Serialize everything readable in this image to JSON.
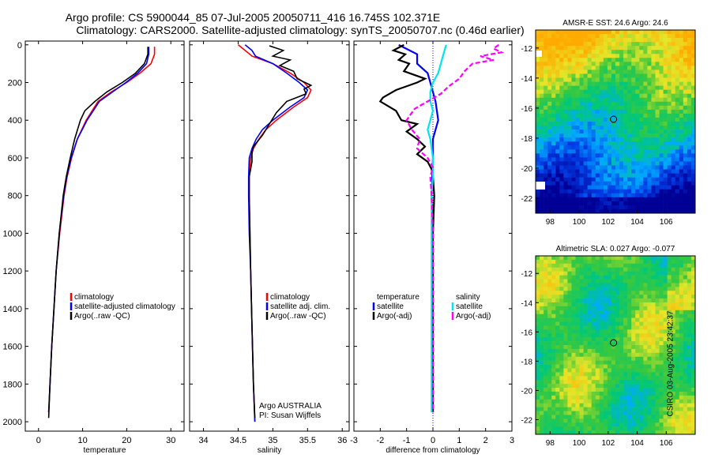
{
  "header": {
    "line1": "Argo profile: CS 5900044_85 07-Jul-2005 20050711_416 16.745S 102.371E",
    "line2": "Climatology: CARS2000. Satellite-adjusted climatology: synTS_20050707.nc (0.46d earlier)"
  },
  "colors": {
    "red": "#ff0000",
    "blue": "#0000ff",
    "black": "#000000",
    "cyan": "#00e5ee",
    "magenta": "#ff00ff"
  },
  "chart_data": [
    {
      "type": "line",
      "id": "temperature",
      "xlabel": "temperature",
      "ylim": [
        2050,
        -20
      ],
      "xlim": [
        -3,
        33
      ],
      "xticks": [
        0,
        10,
        20,
        30
      ],
      "yticks": [
        0,
        200,
        400,
        600,
        800,
        1000,
        1200,
        1400,
        1600,
        1800,
        2000
      ],
      "legend": [
        "climatology",
        "satellite-adjusted climatology",
        "Argo(..raw -QC)"
      ],
      "series": [
        {
          "name": "climatology",
          "color": "red",
          "depth": [
            10,
            50,
            100,
            150,
            200,
            250,
            300,
            400,
            500,
            600,
            700,
            800,
            1000,
            1200,
            1400,
            1600,
            1800,
            1950
          ],
          "values": [
            26.3,
            26.3,
            25.5,
            23.0,
            20.0,
            16.5,
            13.5,
            10.8,
            8.8,
            7.5,
            6.5,
            5.8,
            4.8,
            4.0,
            3.5,
            3.0,
            2.6,
            2.3
          ]
        },
        {
          "name": "satellite-adjusted climatology",
          "color": "blue",
          "depth": [
            10,
            50,
            100,
            150,
            200,
            250,
            300,
            400,
            500,
            600,
            700,
            800,
            1000,
            1200,
            1400,
            1600,
            1800,
            1950
          ],
          "values": [
            25.0,
            25.0,
            24.5,
            22.5,
            19.8,
            16.8,
            13.8,
            11.0,
            8.8,
            7.4,
            6.4,
            5.7,
            4.7,
            4.0,
            3.5,
            3.0,
            2.6,
            2.3
          ]
        },
        {
          "name": "Argo(..raw -QC)",
          "color": "black",
          "depth": [
            10,
            50,
            100,
            150,
            200,
            250,
            300,
            350,
            400,
            500,
            600,
            700,
            800,
            1000,
            1200,
            1400,
            1600,
            1800,
            1980
          ],
          "values": [
            24.8,
            24.8,
            24.0,
            22.0,
            19.0,
            15.5,
            12.8,
            10.5,
            9.5,
            8.2,
            7.2,
            6.3,
            5.6,
            4.7,
            4.0,
            3.5,
            3.0,
            2.6,
            2.3
          ]
        }
      ]
    },
    {
      "type": "line",
      "id": "salinity",
      "xlabel": "salinity",
      "ylim": [
        2050,
        -20
      ],
      "xlim": [
        33.8,
        36.1
      ],
      "xticks": [
        34,
        34.5,
        35,
        35.5,
        36
      ],
      "legend": [
        "climatology",
        "satellite adj. clim.",
        "Argo(..raw -QC)"
      ],
      "annotation": [
        "Argo AUSTRALIA",
        "PI: Susan Wijffels"
      ],
      "series": [
        {
          "name": "climatology",
          "color": "red",
          "depth": [
            0,
            30,
            60,
            100,
            150,
            200,
            240,
            280,
            330,
            400,
            450,
            500,
            550,
            600,
            700,
            800,
            1000,
            1200,
            1500,
            1800,
            2000
          ],
          "values": [
            34.5,
            34.6,
            34.7,
            35.0,
            35.25,
            35.45,
            35.55,
            35.5,
            35.3,
            35.05,
            34.9,
            34.8,
            34.72,
            34.68,
            34.66,
            34.66,
            34.67,
            34.68,
            34.7,
            34.72,
            34.74
          ]
        },
        {
          "name": "satellite adj. clim.",
          "color": "blue",
          "depth": [
            0,
            30,
            60,
            100,
            150,
            200,
            240,
            280,
            330,
            400,
            450,
            500,
            550,
            600,
            700,
            800,
            1000,
            1200,
            1500,
            1800,
            2000
          ],
          "values": [
            34.6,
            34.7,
            34.75,
            35.0,
            35.2,
            35.38,
            35.5,
            35.45,
            35.25,
            35.0,
            34.85,
            34.76,
            34.7,
            34.66,
            34.65,
            34.65,
            34.66,
            34.68,
            34.7,
            34.72,
            34.74
          ]
        },
        {
          "name": "Argo(..raw -QC)",
          "color": "black",
          "depth": [
            5,
            30,
            60,
            80,
            110,
            140,
            180,
            215,
            235,
            260,
            300,
            360,
            420,
            480,
            540,
            570,
            620,
            700,
            800,
            1000,
            1200,
            1500,
            1800,
            1980
          ],
          "values": [
            34.95,
            35.15,
            35.0,
            35.25,
            35.1,
            35.3,
            35.35,
            35.55,
            35.45,
            35.48,
            35.2,
            35.05,
            34.95,
            34.85,
            34.72,
            34.7,
            34.7,
            34.66,
            34.66,
            34.67,
            34.68,
            34.7,
            34.72,
            34.74
          ]
        }
      ]
    },
    {
      "type": "line",
      "id": "difference",
      "xlabel": "difference from climatology",
      "ylim": [
        2050,
        -20
      ],
      "xlim": [
        -3,
        3
      ],
      "xticks": [
        -3,
        -2,
        -1,
        0,
        1,
        2,
        3
      ],
      "legend_left": [
        "temperature",
        "satellite",
        "Argo(-adj)"
      ],
      "legend_right": [
        "salinity",
        "satellite",
        "Argo(-adj)"
      ],
      "series": [
        {
          "name": "temperature satellite",
          "color": "blue",
          "depth": [
            0,
            50,
            100,
            150,
            200,
            300,
            400,
            500,
            600,
            800,
            1000,
            1500,
            1950
          ],
          "values": [
            -1.3,
            -0.6,
            -0.6,
            -0.2,
            -0.1,
            0.1,
            0.2,
            0.0,
            0.0,
            -0.05,
            0.0,
            0.0,
            0.0
          ]
        },
        {
          "name": "temperature Argo(-adj)",
          "color": "black",
          "depth": [
            0,
            30,
            50,
            80,
            100,
            140,
            180,
            200,
            240,
            280,
            300,
            350,
            400,
            420,
            460,
            500,
            540,
            580,
            620,
            660,
            700,
            800,
            1000,
            1500,
            1950
          ],
          "values": [
            -1.1,
            -1.5,
            -1.05,
            -1.3,
            -0.9,
            -1.1,
            -0.3,
            -0.6,
            -1.4,
            -1.9,
            -2.0,
            -1.4,
            -1.2,
            -0.6,
            -1.0,
            -0.6,
            -0.3,
            -0.6,
            -0.2,
            -0.05,
            0.0,
            0.05,
            0.0,
            0.0,
            0.0
          ]
        },
        {
          "name": "salinity satellite",
          "color": "cyan",
          "depth": [
            0,
            50,
            100,
            150,
            200,
            250,
            300,
            350,
            400,
            450,
            500,
            600,
            700,
            800,
            1000,
            1200,
            1500,
            1800,
            1950
          ],
          "values": [
            0.5,
            0.4,
            0.3,
            0.2,
            0.0,
            -0.1,
            -0.1,
            0.0,
            -0.1,
            -0.2,
            -0.1,
            0.0,
            0.0,
            -0.05,
            -0.05,
            -0.05,
            -0.05,
            -0.05,
            -0.05
          ]
        },
        {
          "name": "salinity Argo(-adj)",
          "color": "magenta",
          "depth": [
            0,
            20,
            40,
            60,
            80,
            100,
            140,
            180,
            200,
            220,
            260,
            300,
            340,
            400,
            450,
            500,
            550,
            600,
            650,
            700,
            800,
            1000,
            1300,
            1600,
            1950
          ],
          "values": [
            2.5,
            2.3,
            2.6,
            1.8,
            2.3,
            1.5,
            1.2,
            1.0,
            0.8,
            0.6,
            0.3,
            -0.2,
            -0.7,
            -1.0,
            -0.8,
            -0.5,
            -0.6,
            -0.2,
            0.0,
            -0.1,
            -0.05,
            0.0,
            0.0,
            0.0,
            0.0
          ]
        }
      ]
    },
    {
      "type": "heatmap",
      "id": "sst-map",
      "title": "AMSR-E SST: 24.6 Argo: 24.6",
      "xticks": [
        98,
        100,
        102,
        104,
        106
      ],
      "yticks": [
        -12,
        -14,
        -16,
        -18,
        -20,
        -22
      ],
      "xlim": [
        97,
        108
      ],
      "ylim": [
        -23,
        -10.8
      ],
      "marker": [
        102.371,
        -16.745
      ]
    },
    {
      "type": "heatmap",
      "id": "sla-map",
      "title": "Altimetric SLA: 0.027 Argo: -0.077",
      "xticks": [
        98,
        100,
        102,
        104,
        106
      ],
      "yticks": [
        -12,
        -14,
        -16,
        -18,
        -20,
        -22
      ],
      "xlim": [
        97,
        108
      ],
      "ylim": [
        -23,
        -10.8
      ],
      "marker": [
        102.371,
        -16.745
      ]
    }
  ],
  "footer": {
    "side_label": "CSIRO 03-Aug-2005 23:42:37"
  }
}
